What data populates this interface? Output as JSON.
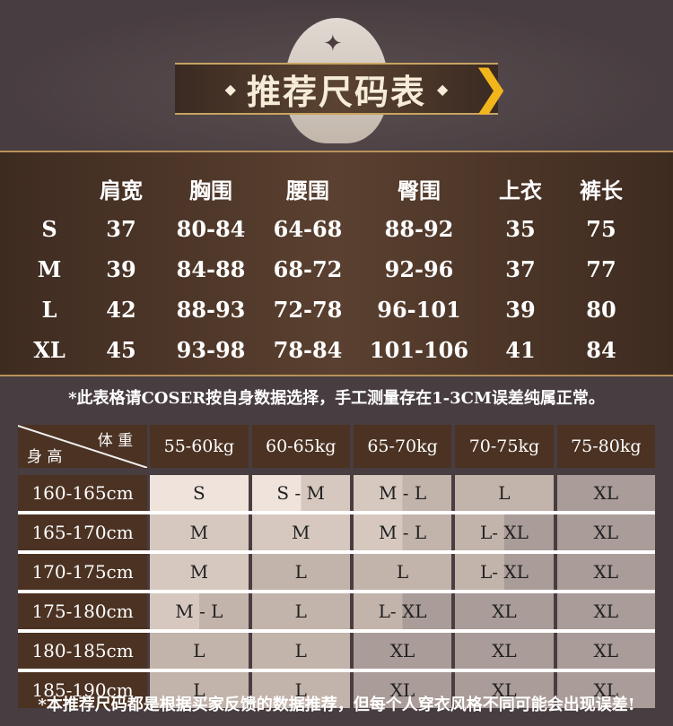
{
  "title": "推荐尺码表",
  "measurements": {
    "headers": [
      "肩宽",
      "胸围",
      "腰围",
      "臀围",
      "上衣",
      "裤长"
    ],
    "rows": [
      {
        "size": "S",
        "values": [
          "37",
          "80-84",
          "64-68",
          "88-92",
          "35",
          "75"
        ]
      },
      {
        "size": "M",
        "values": [
          "39",
          "84-88",
          "68-72",
          "92-96",
          "37",
          "77"
        ]
      },
      {
        "size": "L",
        "values": [
          "42",
          "88-93",
          "72-78",
          "96-101",
          "39",
          "80"
        ]
      },
      {
        "size": "XL",
        "values": [
          "45",
          "93-98",
          "78-84",
          "101-106",
          "41",
          "84"
        ]
      }
    ]
  },
  "note1": "*此表格请COSER按自身数据选择，手工测量存在1-3CM误差纯属正常。",
  "recommend": {
    "corner_weight": "体 重",
    "corner_height": "身 高",
    "weights": [
      "55-60kg",
      "60-65kg",
      "65-70kg",
      "70-75kg",
      "75-80kg"
    ],
    "rows": [
      {
        "height": "160-165cm",
        "sizes": [
          "S",
          "S - M",
          "M - L",
          "L",
          "XL"
        ]
      },
      {
        "height": "165-170cm",
        "sizes": [
          "M",
          "M",
          "M - L",
          "L- XL",
          "XL"
        ]
      },
      {
        "height": "170-175cm",
        "sizes": [
          "M",
          "L",
          "L",
          "L- XL",
          "XL"
        ]
      },
      {
        "height": "175-180cm",
        "sizes": [
          "M - L",
          "L",
          "L- XL",
          "XL",
          "XL"
        ]
      },
      {
        "height": "180-185cm",
        "sizes": [
          "L",
          "L",
          "XL",
          "XL",
          "XL"
        ]
      },
      {
        "height": "185-190cm",
        "sizes": [
          "L",
          "L",
          "XL",
          "XL",
          "XL"
        ]
      }
    ]
  },
  "note2": "*本推荐尺码都是根据买家反馈的数据推荐，但每个人穿衣风格不同可能会出现误差!",
  "colors": {
    "S": "#efe3dc",
    "M": "#d6c8bf",
    "L": "#c2b3ab",
    "XL": "#aa9c98",
    "gold": "#f2b51c"
  }
}
